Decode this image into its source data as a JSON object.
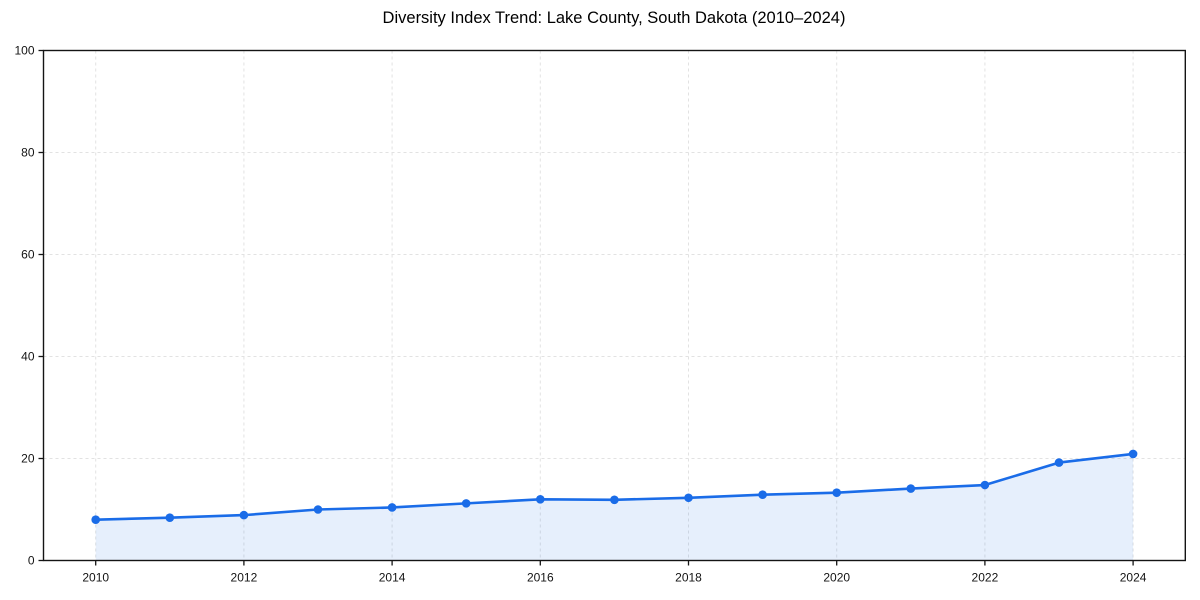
{
  "figure": {
    "background": "#ffffff"
  },
  "chart_data": {
    "type": "area",
    "title": "Diversity Index Trend: Lake County, South Dakota (2010–2024)",
    "x": [
      2010,
      2011,
      2012,
      2013,
      2014,
      2015,
      2016,
      2017,
      2018,
      2019,
      2020,
      2021,
      2022,
      2023,
      2024
    ],
    "series": [
      {
        "name": "Diversity Index",
        "values": [
          8.0,
          8.4,
          8.9,
          10.0,
          10.4,
          11.2,
          12.0,
          11.9,
          12.3,
          12.9,
          13.3,
          14.1,
          14.8,
          19.2,
          20.9
        ]
      }
    ],
    "xlabel": "",
    "ylabel": "",
    "ylim": [
      0,
      100
    ],
    "yticks": [
      0,
      20,
      40,
      60,
      80,
      100
    ],
    "xticks": [
      2010,
      2012,
      2014,
      2016,
      2018,
      2020,
      2022,
      2024
    ],
    "grid": true,
    "grid_style": "dashed",
    "legend_position": "none",
    "colors": {
      "line": "#1a6ce8",
      "marker": "#1a6ce8",
      "fill": "#1a6ce8",
      "fill_opacity": 0.11,
      "grid": "#e2e2e2",
      "axis": "#141414",
      "tick_label": "#141414",
      "title": "#000000",
      "background": "#ffffff"
    }
  }
}
